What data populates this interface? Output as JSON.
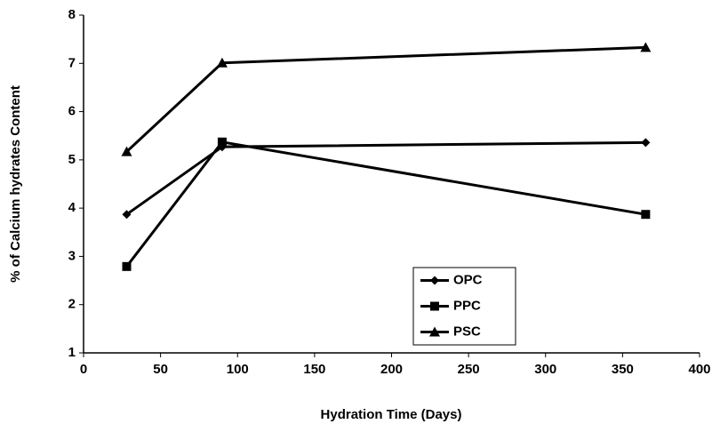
{
  "chart_data": {
    "type": "line",
    "x_label": "Hydration Time (Days)",
    "y_label": "% of Calcium hydrates Content",
    "x": [
      28,
      90,
      365
    ],
    "series": [
      {
        "name": "OPC",
        "color": "#000000",
        "marker": "diamond",
        "values": [
          3.87,
          5.27,
          5.36
        ]
      },
      {
        "name": "PPC",
        "color": "#000000",
        "marker": "square",
        "values": [
          2.79,
          5.37,
          3.87
        ]
      },
      {
        "name": "PSC",
        "color": "#000000",
        "marker": "triangle",
        "values": [
          5.17,
          7.01,
          7.33
        ]
      }
    ],
    "xlim": [
      0,
      400
    ],
    "xticks": [
      0,
      50,
      100,
      150,
      200,
      250,
      300,
      350,
      400
    ],
    "ylim": [
      1,
      8
    ],
    "yticks": [
      1,
      2,
      3,
      4,
      5,
      6,
      7,
      8
    ],
    "grid": false,
    "legend_position": "bottom-center"
  }
}
